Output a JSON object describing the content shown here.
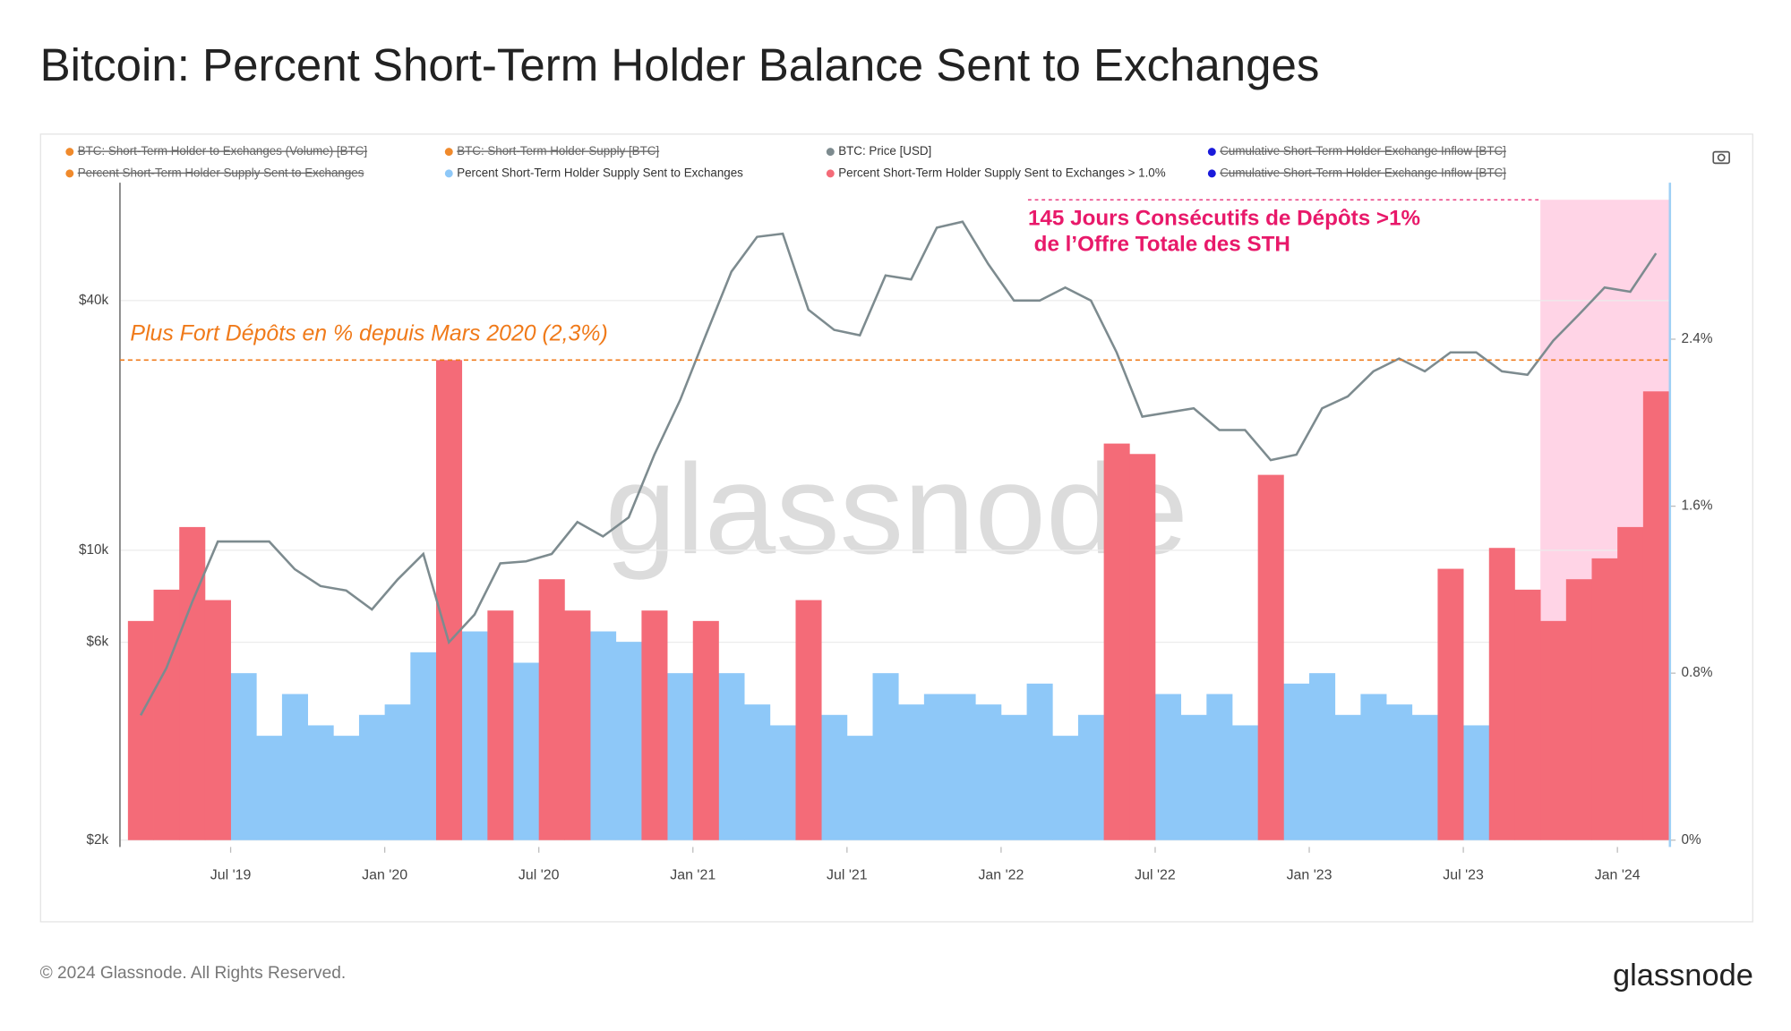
{
  "chart_data": {
    "type": "bar-line",
    "title": "Bitcoin: Percent Short-Term Holder Balance Sent to Exchanges",
    "watermark": "glassnode",
    "footer": "© 2024 Glassnode. All Rights Reserved.",
    "logo": "glassnode",
    "x": [
      "2019-03",
      "2019-04",
      "2019-05",
      "2019-06",
      "2019-07",
      "2019-08",
      "2019-09",
      "2019-10",
      "2019-11",
      "2019-12",
      "2020-01",
      "2020-02",
      "2020-03",
      "2020-04",
      "2020-05",
      "2020-06",
      "2020-07",
      "2020-08",
      "2020-09",
      "2020-10",
      "2020-11",
      "2020-12",
      "2021-01",
      "2021-02",
      "2021-03",
      "2021-04",
      "2021-05",
      "2021-06",
      "2021-07",
      "2021-08",
      "2021-09",
      "2021-10",
      "2021-11",
      "2021-12",
      "2022-01",
      "2022-02",
      "2022-03",
      "2022-04",
      "2022-05",
      "2022-06",
      "2022-07",
      "2022-08",
      "2022-09",
      "2022-10",
      "2022-11",
      "2022-12",
      "2023-01",
      "2023-02",
      "2023-03",
      "2023-04",
      "2023-05",
      "2023-06",
      "2023-07",
      "2023-08",
      "2023-09",
      "2023-10",
      "2023-11",
      "2023-12",
      "2024-01",
      "2024-02"
    ],
    "xlim": [
      "2019-03",
      "2024-03"
    ],
    "xticks": [
      {
        "value": "2019-07",
        "label": "Jul '19"
      },
      {
        "value": "2020-01",
        "label": "Jan '20"
      },
      {
        "value": "2020-07",
        "label": "Jul '20"
      },
      {
        "value": "2021-01",
        "label": "Jan '21"
      },
      {
        "value": "2021-07",
        "label": "Jul '21"
      },
      {
        "value": "2022-01",
        "label": "Jan '22"
      },
      {
        "value": "2022-07",
        "label": "Jul '22"
      },
      {
        "value": "2023-01",
        "label": "Jan '23"
      },
      {
        "value": "2023-07",
        "label": "Jul '23"
      },
      {
        "value": "2024-01",
        "label": "Jan '24"
      }
    ],
    "ylim": [
      2000,
      77000
    ],
    "log_scale": true,
    "grid": true,
    "yticks": [
      {
        "value": 2000,
        "label": "$2k"
      },
      {
        "value": 6000,
        "label": "$6k"
      },
      {
        "value": 10000,
        "label": "$10k"
      },
      {
        "value": 40000,
        "label": "$40k"
      }
    ],
    "y2lim": [
      0,
      3.15
    ],
    "y2ticks": [
      {
        "value": 0,
        "label": "0%"
      },
      {
        "value": 0.8,
        "label": "0.8%"
      },
      {
        "value": 1.6,
        "label": "1.6%"
      },
      {
        "value": 2.4,
        "label": "2.4%"
      }
    ],
    "series": [
      {
        "name": "BTC: Price [USD]",
        "color": "#7d8b8f",
        "kind": "line",
        "axis": "y",
        "values": [
          4000,
          5200,
          7500,
          10500,
          10500,
          10500,
          9000,
          8200,
          8000,
          7200,
          8500,
          9800,
          6000,
          7000,
          9300,
          9400,
          9800,
          11700,
          10800,
          12000,
          17000,
          23000,
          33000,
          47000,
          57000,
          58000,
          38000,
          34000,
          33000,
          46000,
          45000,
          60000,
          62000,
          49000,
          40000,
          40000,
          43000,
          40000,
          30000,
          21000,
          21500,
          22000,
          19500,
          19500,
          16500,
          17000,
          22000,
          23500,
          27000,
          29000,
          27000,
          30000,
          30000,
          27000,
          26500,
          32000,
          37000,
          43000,
          42000,
          52000
        ]
      },
      {
        "name": "Percent Short-Term Holder Supply Sent to Exchanges",
        "color": "#8ec8f8",
        "kind": "bar",
        "axis": "y2",
        "values": [
          null,
          null,
          null,
          null,
          0.8,
          0.5,
          0.7,
          0.55,
          0.5,
          0.6,
          0.65,
          0.9,
          null,
          1.0,
          null,
          0.85,
          null,
          null,
          1.0,
          0.95,
          null,
          0.8,
          null,
          0.8,
          0.65,
          0.55,
          null,
          0.6,
          0.5,
          0.8,
          0.65,
          0.7,
          0.7,
          0.65,
          0.6,
          0.75,
          0.5,
          0.6,
          null,
          null,
          0.7,
          0.6,
          0.7,
          0.55,
          null,
          0.75,
          0.8,
          0.6,
          0.7,
          0.65,
          0.6,
          null,
          0.55,
          null,
          null,
          null,
          null,
          null,
          null,
          null
        ]
      },
      {
        "name": "Percent Short-Term Holder Supply Sent to Exchanges > 1.0%",
        "color": "#f46b78",
        "kind": "bar",
        "axis": "y2",
        "values": [
          1.05,
          1.2,
          1.5,
          1.15,
          null,
          null,
          null,
          null,
          null,
          null,
          null,
          null,
          2.3,
          null,
          1.1,
          null,
          1.25,
          1.1,
          null,
          null,
          1.1,
          null,
          1.05,
          null,
          null,
          null,
          1.15,
          null,
          null,
          null,
          null,
          null,
          null,
          null,
          null,
          null,
          null,
          null,
          1.9,
          1.85,
          null,
          null,
          null,
          null,
          1.75,
          null,
          null,
          null,
          null,
          null,
          null,
          1.3,
          null,
          1.4,
          1.2,
          1.05,
          1.25,
          1.35,
          1.5,
          2.15
        ]
      }
    ],
    "hidden_series": [
      {
        "name": "BTC: Short-Term Holder to Exchanges (Volume) [BTC]",
        "color": "#f08a2c"
      },
      {
        "name": "BTC: Short-Term Holder Supply [BTC]",
        "color": "#f08a2c"
      },
      {
        "name": "Cumulative Short-Term Holder Exchange Inflow [BTC]",
        "color": "#1a1adb"
      },
      {
        "name": "Percent Short-Term Holder Supply Sent to Exchanges",
        "color": "#f08a2c"
      },
      {
        "name": "Cumulative Short-Term Holder Exchange Inflow [BTC]",
        "color": "#1a1adb"
      }
    ],
    "annotations": [
      {
        "text": "Plus Fort Dépôts en % depuis Mars 2020 (2,3%)",
        "y2": 2.3,
        "color": "#f07a1a"
      },
      {
        "lines": [
          "145 Jours Consécutifs de Dépôts >1%",
          " de l’Offre Totale des STH"
        ],
        "x0": "2023-10",
        "x1": "2024-03",
        "color": "#e8196a"
      }
    ]
  }
}
